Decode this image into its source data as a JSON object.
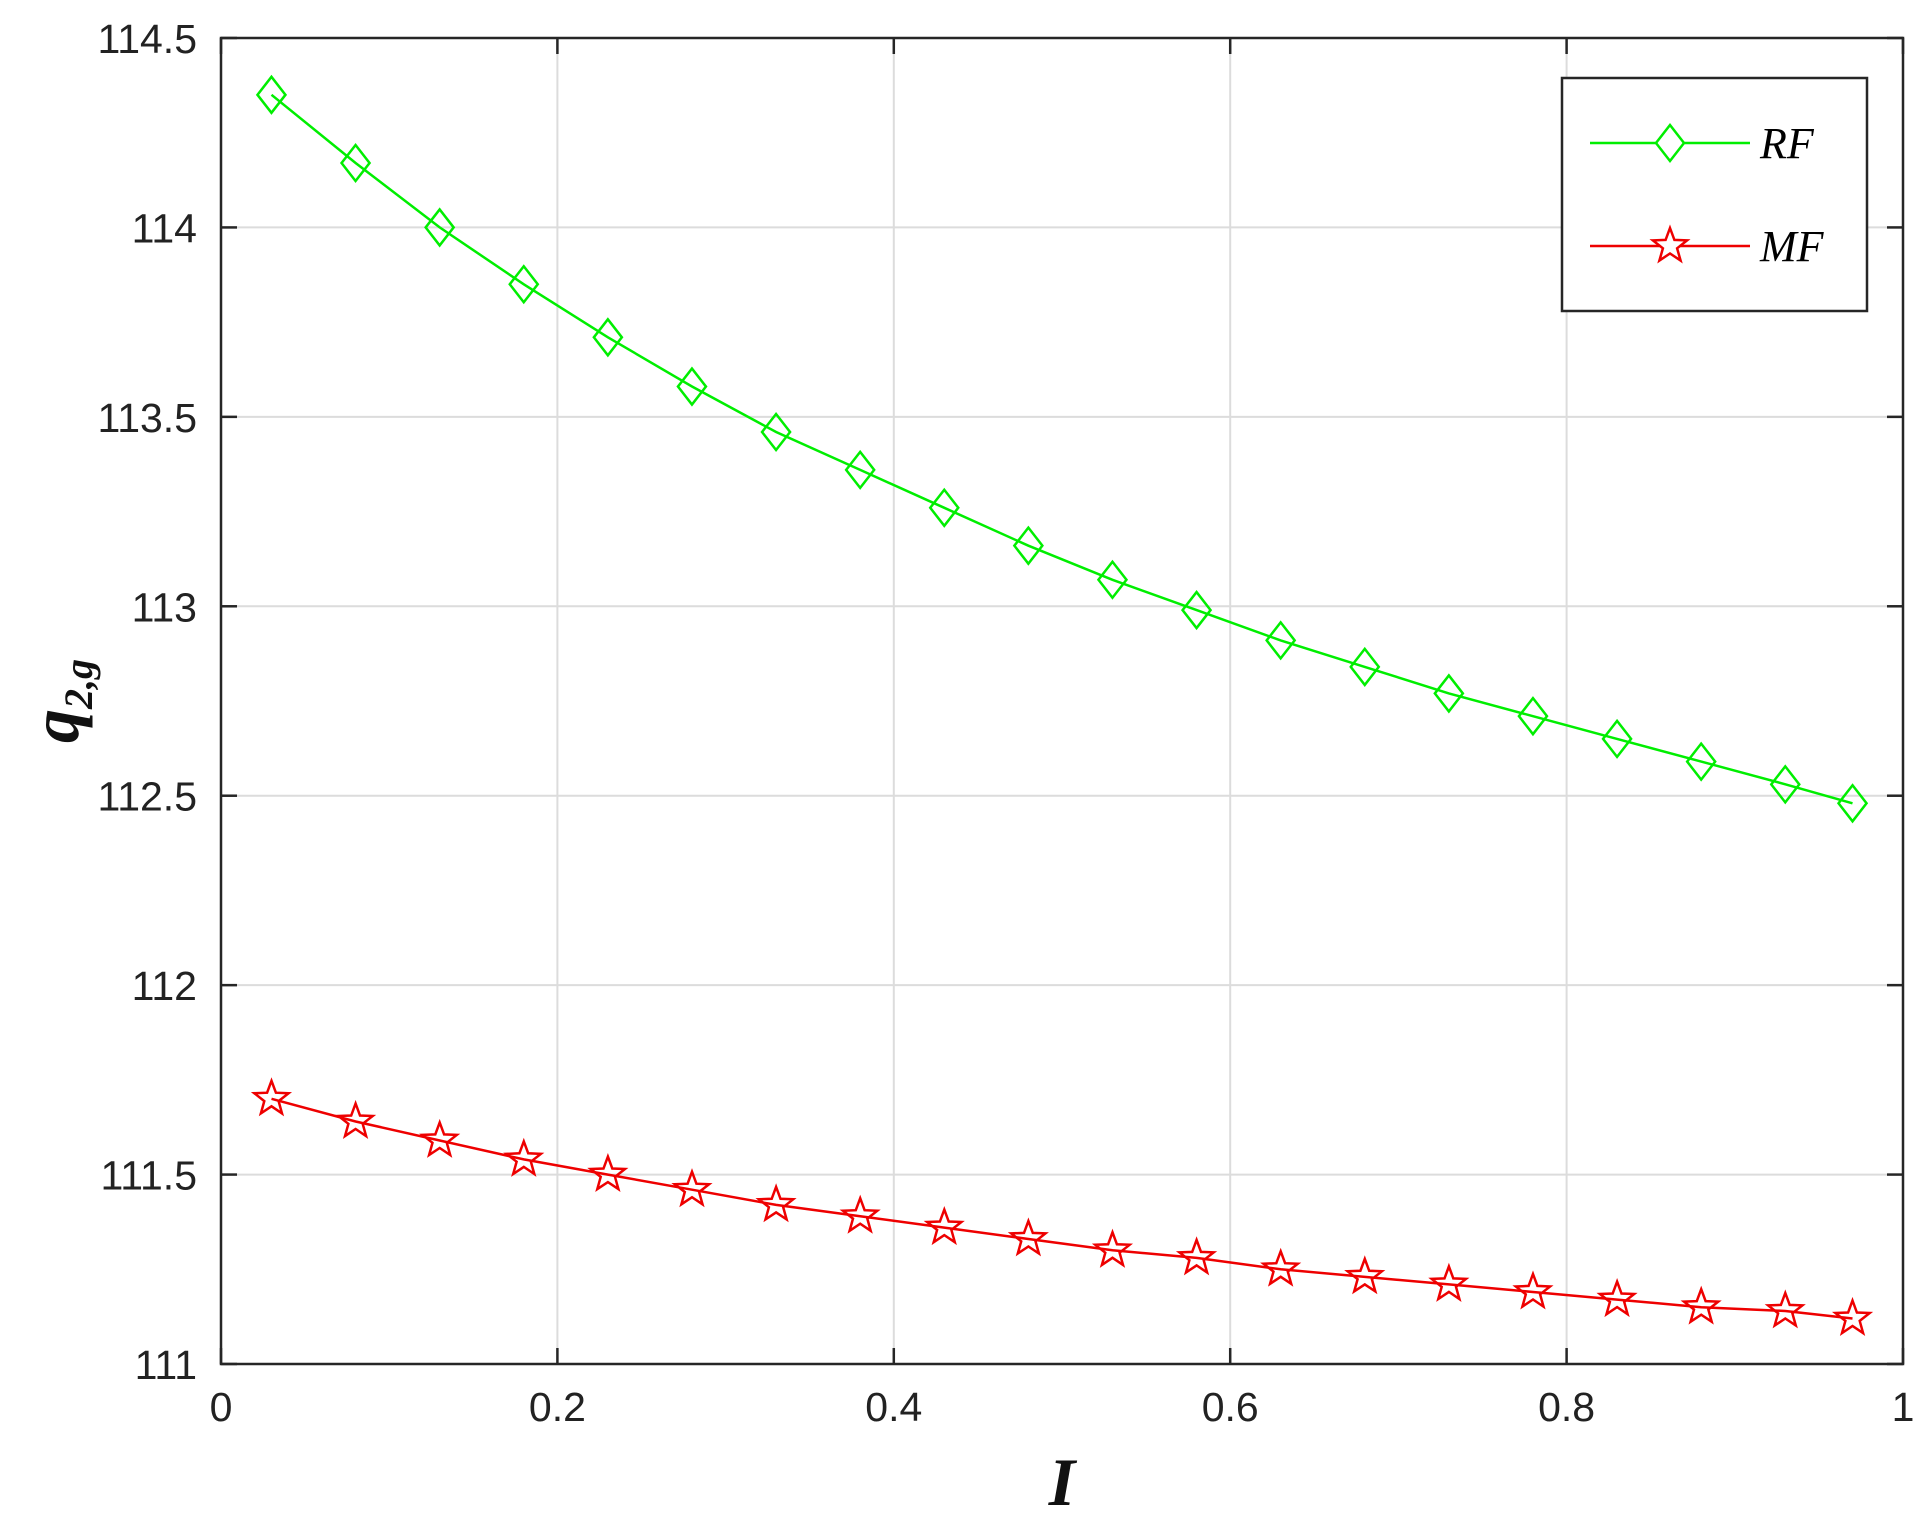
{
  "chart_data": {
    "type": "line",
    "title": "",
    "xlabel": "I",
    "ylabel": {
      "main": "q",
      "sub": "2,g"
    },
    "xlim": [
      0,
      1
    ],
    "ylim": [
      111,
      114.5
    ],
    "xticks": [
      0,
      0.2,
      0.4,
      0.6,
      0.8,
      1
    ],
    "xtick_labels": [
      "0",
      "0.2",
      "0.4",
      "0.6",
      "0.8",
      "1"
    ],
    "yticks": [
      111,
      111.5,
      112,
      112.5,
      113,
      113.5,
      114,
      114.5
    ],
    "ytick_labels": [
      "111",
      "111.5",
      "112",
      "112.5",
      "113",
      "113.5",
      "114",
      "114.5"
    ],
    "grid": true,
    "legend_position": "top-right",
    "x": [
      0.03,
      0.08,
      0.13,
      0.18,
      0.23,
      0.28,
      0.33,
      0.38,
      0.43,
      0.48,
      0.53,
      0.58,
      0.63,
      0.68,
      0.73,
      0.78,
      0.83,
      0.88,
      0.93,
      0.97
    ],
    "series": [
      {
        "name": "RF",
        "color": "#00ee00",
        "marker": "diamond",
        "values": [
          114.35,
          114.17,
          114.0,
          113.85,
          113.71,
          113.58,
          113.46,
          113.36,
          113.26,
          113.16,
          113.07,
          112.99,
          112.91,
          112.84,
          112.77,
          112.71,
          112.65,
          112.59,
          112.53,
          112.48
        ]
      },
      {
        "name": "MF",
        "color": "#ee0000",
        "marker": "star",
        "values": [
          111.7,
          111.64,
          111.59,
          111.54,
          111.5,
          111.46,
          111.42,
          111.39,
          111.36,
          111.33,
          111.3,
          111.28,
          111.25,
          111.23,
          111.21,
          111.19,
          111.17,
          111.15,
          111.14,
          111.12
        ]
      }
    ]
  }
}
